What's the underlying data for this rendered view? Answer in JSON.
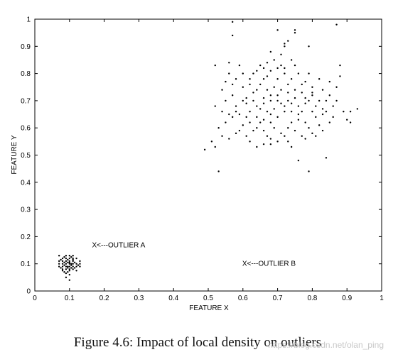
{
  "chart_data": {
    "type": "scatter",
    "title": "",
    "xlabel": "FEATURE X",
    "ylabel": "FEATURE Y",
    "xlim": [
      0,
      1
    ],
    "ylim": [
      0,
      1
    ],
    "xticks": [
      "0",
      "0.1",
      "0.2",
      "0.3",
      "0.4",
      "0.5",
      "0.6",
      "0.7",
      "0.8",
      "0.9",
      "1"
    ],
    "yticks": [
      "0",
      "0.1",
      "0.2",
      "0.3",
      "0.4",
      "0.5",
      "0.6",
      "0.7",
      "0.8",
      "0.9",
      "1"
    ],
    "grid": false,
    "annotations": [
      {
        "text": "X<---OUTLIER A",
        "x": 0.165,
        "y": 0.16
      },
      {
        "text": "X<---OUTLIER B",
        "x": 0.598,
        "y": 0.093
      }
    ],
    "series": [
      {
        "points": [
          [
            0.57,
            0.99
          ],
          [
            0.7,
            0.96
          ],
          [
            0.75,
            0.96
          ],
          [
            0.75,
            0.95
          ],
          [
            0.57,
            0.94
          ],
          [
            0.87,
            0.98
          ],
          [
            0.68,
            0.88
          ],
          [
            0.72,
            0.91
          ],
          [
            0.73,
            0.92
          ],
          [
            0.72,
            0.9
          ],
          [
            0.79,
            0.9
          ],
          [
            0.71,
            0.87
          ],
          [
            0.74,
            0.85
          ],
          [
            0.72,
            0.82
          ],
          [
            0.72,
            0.8
          ],
          [
            0.75,
            0.83
          ],
          [
            0.71,
            0.83
          ],
          [
            0.52,
            0.83
          ],
          [
            0.56,
            0.84
          ],
          [
            0.59,
            0.83
          ],
          [
            0.56,
            0.8
          ],
          [
            0.55,
            0.77
          ],
          [
            0.57,
            0.76
          ],
          [
            0.65,
            0.83
          ],
          [
            0.64,
            0.81
          ],
          [
            0.66,
            0.82
          ],
          [
            0.63,
            0.8
          ],
          [
            0.68,
            0.81
          ],
          [
            0.7,
            0.78
          ],
          [
            0.73,
            0.76
          ],
          [
            0.66,
            0.78
          ],
          [
            0.67,
            0.74
          ],
          [
            0.64,
            0.74
          ],
          [
            0.62,
            0.76
          ],
          [
            0.61,
            0.71
          ],
          [
            0.6,
            0.7
          ],
          [
            0.58,
            0.68
          ],
          [
            0.56,
            0.65
          ],
          [
            0.54,
            0.66
          ],
          [
            0.55,
            0.7
          ],
          [
            0.54,
            0.74
          ],
          [
            0.52,
            0.68
          ],
          [
            0.55,
            0.62
          ],
          [
            0.57,
            0.64
          ],
          [
            0.53,
            0.6
          ],
          [
            0.58,
            0.66
          ],
          [
            0.62,
            0.66
          ],
          [
            0.64,
            0.64
          ],
          [
            0.65,
            0.67
          ],
          [
            0.63,
            0.7
          ],
          [
            0.66,
            0.71
          ],
          [
            0.68,
            0.7
          ],
          [
            0.7,
            0.72
          ],
          [
            0.71,
            0.69
          ],
          [
            0.73,
            0.7
          ],
          [
            0.75,
            0.71
          ],
          [
            0.77,
            0.73
          ],
          [
            0.76,
            0.68
          ],
          [
            0.77,
            0.66
          ],
          [
            0.79,
            0.7
          ],
          [
            0.8,
            0.72
          ],
          [
            0.78,
            0.69
          ],
          [
            0.82,
            0.7
          ],
          [
            0.8,
            0.66
          ],
          [
            0.81,
            0.64
          ],
          [
            0.83,
            0.65
          ],
          [
            0.84,
            0.7
          ],
          [
            0.85,
            0.72
          ],
          [
            0.84,
            0.66
          ],
          [
            0.86,
            0.68
          ],
          [
            0.86,
            0.64
          ],
          [
            0.87,
            0.75
          ],
          [
            0.88,
            0.79
          ],
          [
            0.88,
            0.83
          ],
          [
            0.85,
            0.77
          ],
          [
            0.83,
            0.74
          ],
          [
            0.8,
            0.75
          ],
          [
            0.78,
            0.77
          ],
          [
            0.82,
            0.78
          ],
          [
            0.79,
            0.8
          ],
          [
            0.76,
            0.8
          ],
          [
            0.74,
            0.78
          ],
          [
            0.89,
            0.66
          ],
          [
            0.91,
            0.66
          ],
          [
            0.93,
            0.67
          ],
          [
            0.9,
            0.63
          ],
          [
            0.91,
            0.62
          ],
          [
            0.72,
            0.66
          ],
          [
            0.7,
            0.64
          ],
          [
            0.68,
            0.62
          ],
          [
            0.69,
            0.6
          ],
          [
            0.71,
            0.58
          ],
          [
            0.73,
            0.6
          ],
          [
            0.74,
            0.62
          ],
          [
            0.76,
            0.63
          ],
          [
            0.75,
            0.59
          ],
          [
            0.72,
            0.57
          ],
          [
            0.7,
            0.55
          ],
          [
            0.68,
            0.54
          ],
          [
            0.67,
            0.57
          ],
          [
            0.66,
            0.59
          ],
          [
            0.65,
            0.62
          ],
          [
            0.63,
            0.59
          ],
          [
            0.61,
            0.64
          ],
          [
            0.6,
            0.61
          ],
          [
            0.59,
            0.59
          ],
          [
            0.58,
            0.58
          ],
          [
            0.61,
            0.57
          ],
          [
            0.62,
            0.55
          ],
          [
            0.64,
            0.53
          ],
          [
            0.66,
            0.54
          ],
          [
            0.68,
            0.56
          ],
          [
            0.73,
            0.55
          ],
          [
            0.74,
            0.53
          ],
          [
            0.77,
            0.57
          ],
          [
            0.79,
            0.6
          ],
          [
            0.8,
            0.58
          ],
          [
            0.78,
            0.56
          ],
          [
            0.82,
            0.61
          ],
          [
            0.83,
            0.59
          ],
          [
            0.81,
            0.57
          ],
          [
            0.78,
            0.62
          ],
          [
            0.76,
            0.48
          ],
          [
            0.79,
            0.44
          ],
          [
            0.84,
            0.49
          ],
          [
            0.53,
            0.44
          ],
          [
            0.49,
            0.52
          ],
          [
            0.51,
            0.55
          ],
          [
            0.54,
            0.57
          ],
          [
            0.56,
            0.56
          ],
          [
            0.52,
            0.53
          ],
          [
            0.66,
            0.69
          ],
          [
            0.69,
            0.67
          ],
          [
            0.63,
            0.73
          ],
          [
            0.6,
            0.75
          ],
          [
            0.62,
            0.78
          ],
          [
            0.65,
            0.76
          ],
          [
            0.67,
            0.79
          ],
          [
            0.69,
            0.75
          ],
          [
            0.71,
            0.74
          ],
          [
            0.73,
            0.73
          ],
          [
            0.75,
            0.74
          ],
          [
            0.77,
            0.76
          ],
          [
            0.72,
            0.68
          ],
          [
            0.74,
            0.66
          ],
          [
            0.76,
            0.65
          ],
          [
            0.7,
            0.7
          ],
          [
            0.68,
            0.72
          ],
          [
            0.59,
            0.65
          ],
          [
            0.57,
            0.72
          ],
          [
            0.61,
            0.69
          ],
          [
            0.64,
            0.68
          ],
          [
            0.67,
            0.66
          ],
          [
            0.81,
            0.68
          ],
          [
            0.83,
            0.67
          ],
          [
            0.85,
            0.62
          ],
          [
            0.87,
            0.7
          ],
          [
            0.74,
            0.69
          ],
          [
            0.78,
            0.71
          ],
          [
            0.8,
            0.73
          ],
          [
            0.69,
            0.85
          ],
          [
            0.7,
            0.82
          ],
          [
            0.67,
            0.84
          ],
          [
            0.58,
            0.78
          ],
          [
            0.6,
            0.8
          ],
          [
            0.62,
            0.62
          ],
          [
            0.64,
            0.6
          ],
          [
            0.66,
            0.63
          ],
          [
            0.68,
            0.65
          ]
        ]
      },
      {
        "points": [
          [
            0.07,
            0.13
          ],
          [
            0.08,
            0.12
          ],
          [
            0.09,
            0.13
          ],
          [
            0.1,
            0.13
          ],
          [
            0.11,
            0.12
          ],
          [
            0.12,
            0.12
          ],
          [
            0.08,
            0.11
          ],
          [
            0.09,
            0.11
          ],
          [
            0.1,
            0.11
          ],
          [
            0.11,
            0.11
          ],
          [
            0.13,
            0.11
          ],
          [
            0.07,
            0.1
          ],
          [
            0.08,
            0.1
          ],
          [
            0.09,
            0.1
          ],
          [
            0.1,
            0.1
          ],
          [
            0.105,
            0.1
          ],
          [
            0.11,
            0.1
          ],
          [
            0.12,
            0.1
          ],
          [
            0.07,
            0.09
          ],
          [
            0.08,
            0.09
          ],
          [
            0.09,
            0.09
          ],
          [
            0.095,
            0.09
          ],
          [
            0.1,
            0.09
          ],
          [
            0.11,
            0.09
          ],
          [
            0.12,
            0.09
          ],
          [
            0.13,
            0.09
          ],
          [
            0.08,
            0.08
          ],
          [
            0.09,
            0.08
          ],
          [
            0.1,
            0.08
          ],
          [
            0.11,
            0.08
          ],
          [
            0.085,
            0.07
          ],
          [
            0.095,
            0.07
          ],
          [
            0.1,
            0.06
          ],
          [
            0.09,
            0.05
          ],
          [
            0.1,
            0.04
          ],
          [
            0.075,
            0.115
          ],
          [
            0.085,
            0.125
          ],
          [
            0.105,
            0.125
          ],
          [
            0.115,
            0.105
          ],
          [
            0.125,
            0.095
          ],
          [
            0.095,
            0.105
          ],
          [
            0.085,
            0.095
          ],
          [
            0.105,
            0.085
          ],
          [
            0.075,
            0.085
          ],
          [
            0.095,
            0.115
          ],
          [
            0.115,
            0.085
          ],
          [
            0.09,
            0.12
          ],
          [
            0.1,
            0.12
          ],
          [
            0.08,
            0.075
          ],
          [
            0.12,
            0.075
          ],
          [
            0.07,
            0.11
          ],
          [
            0.11,
            0.13
          ],
          [
            0.13,
            0.1
          ],
          [
            0.1,
            0.075
          ],
          [
            0.09,
            0.065
          ],
          [
            0.105,
            0.095
          ],
          [
            0.095,
            0.085
          ],
          [
            0.1,
            0.105
          ],
          [
            0.11,
            0.115
          ],
          [
            0.085,
            0.105
          ]
        ]
      }
    ]
  },
  "caption": "Figure 4.6: Impact of local density on outliers",
  "watermark": "https://blog.csdn.net/olan_ping"
}
